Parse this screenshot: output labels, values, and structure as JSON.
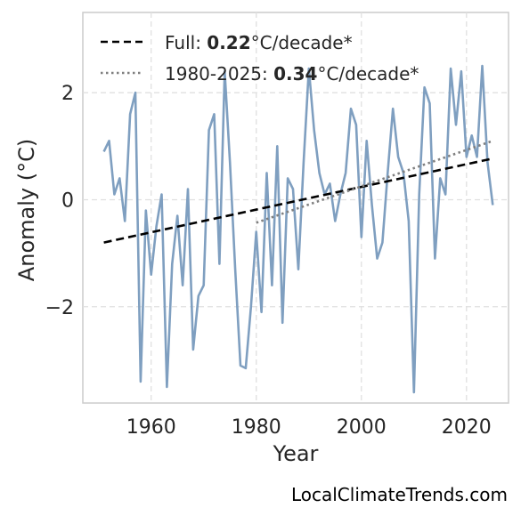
{
  "chart_data": {
    "type": "line",
    "xlabel": "Year",
    "ylabel": "Anomaly (°C)",
    "xlim": [
      1947,
      2028
    ],
    "ylim": [
      -3.8,
      3.5
    ],
    "xticks": [
      1960,
      1980,
      2000,
      2020
    ],
    "yticks": [
      -2,
      0,
      2
    ],
    "ytick_labels": [
      "−2",
      "0",
      "2"
    ],
    "grid": true,
    "legend_position": "top-left",
    "colors": {
      "series": "#7f9fc0",
      "full_trend": "#000000",
      "recent_trend": "#7f7f7f"
    },
    "legend": [
      {
        "prefix": "Full: ",
        "bold": "0.22",
        "suffix": "°C/decade*",
        "style": "dashed"
      },
      {
        "prefix": "1980-2025: ",
        "bold": "0.34",
        "suffix": "°C/decade*",
        "style": "dotted"
      }
    ],
    "x": [
      1951,
      1952,
      1953,
      1954,
      1955,
      1956,
      1957,
      1958,
      1959,
      1960,
      1961,
      1962,
      1963,
      1964,
      1965,
      1966,
      1967,
      1968,
      1969,
      1970,
      1971,
      1972,
      1973,
      1974,
      1975,
      1976,
      1977,
      1978,
      1979,
      1980,
      1981,
      1982,
      1983,
      1984,
      1985,
      1986,
      1987,
      1988,
      1989,
      1990,
      1991,
      1992,
      1993,
      1994,
      1995,
      1996,
      1997,
      1998,
      1999,
      2000,
      2001,
      2002,
      2003,
      2004,
      2005,
      2006,
      2007,
      2008,
      2009,
      2010,
      2011,
      2012,
      2013,
      2014,
      2015,
      2016,
      2017,
      2018,
      2019,
      2020,
      2021,
      2022,
      2023,
      2024,
      2025
    ],
    "values": [
      0.9,
      1.1,
      0.1,
      0.4,
      -0.4,
      1.6,
      2.0,
      -3.4,
      -0.2,
      -1.4,
      -0.5,
      0.1,
      -3.5,
      -1.2,
      -0.3,
      -1.6,
      0.2,
      -2.8,
      -1.8,
      -1.6,
      1.3,
      1.6,
      -1.2,
      2.4,
      0.7,
      -1.3,
      -3.1,
      -3.15,
      -2.0,
      -0.6,
      -2.1,
      0.5,
      -1.6,
      1.0,
      -2.3,
      0.4,
      0.2,
      -1.3,
      0.7,
      2.45,
      1.3,
      0.5,
      0.1,
      0.3,
      -0.4,
      0.1,
      0.5,
      1.7,
      1.4,
      -0.7,
      1.1,
      -0.1,
      -1.1,
      -0.8,
      0.5,
      1.7,
      0.8,
      0.5,
      -0.4,
      -3.6,
      0.1,
      2.1,
      1.8,
      -1.1,
      0.4,
      0.1,
      2.45,
      1.4,
      2.4,
      0.8,
      1.2,
      0.8,
      2.5,
      0.7,
      -0.1
    ],
    "trends": [
      {
        "name": "Full",
        "x": [
          1951,
          2025
        ],
        "y": [
          -0.8,
          0.77
        ]
      },
      {
        "name": "1980-2025",
        "x": [
          1980,
          2025
        ],
        "y": [
          -0.43,
          1.1
        ]
      }
    ]
  },
  "credit": "LocalClimateTrends.com"
}
